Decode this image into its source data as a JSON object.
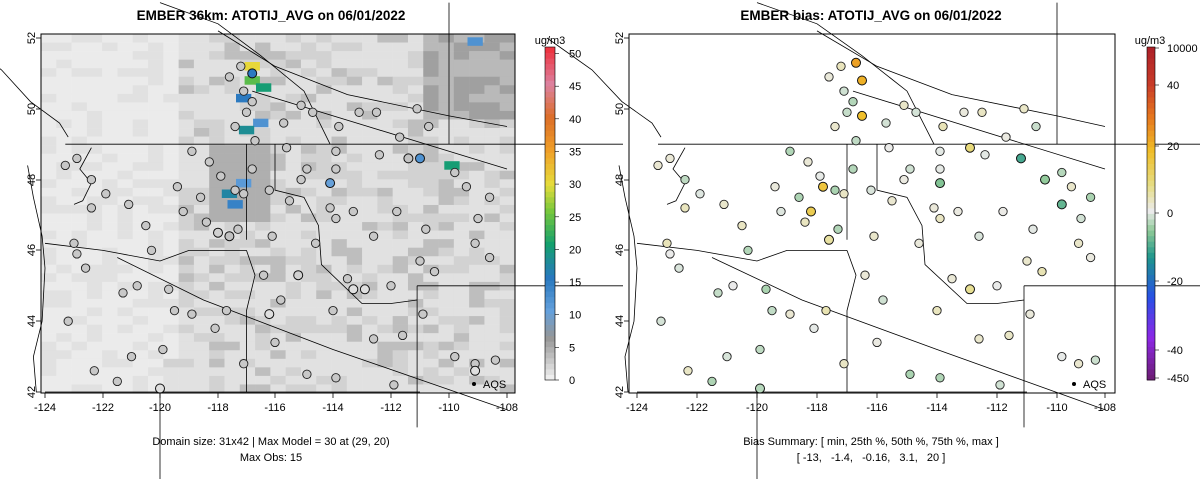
{
  "chart_data": [
    {
      "type": "heatmap",
      "title": "EMBER 36km: ATOTIJ_AVG on 06/01/2022",
      "x_ticks": [
        "-124",
        "-122",
        "-120",
        "-118",
        "-116",
        "-114",
        "-112",
        "-110",
        "-108"
      ],
      "y_ticks": [
        "42",
        "44",
        "46",
        "48",
        "50",
        "52"
      ],
      "xlim": [
        -124.5,
        -107.8
      ],
      "ylim": [
        42,
        52.4
      ],
      "colorbar": {
        "unit": "ug/m3",
        "ticks": [
          "0",
          "5",
          "10",
          "15",
          "20",
          "25",
          "30",
          "35",
          "40",
          "45",
          "50"
        ],
        "range": [
          0,
          51
        ]
      },
      "legend": {
        "label": "AQS"
      },
      "caption_line1": "Domain size: 31x42 | Max Model = 30 at (29, 20)",
      "caption_line2": "Max Obs: 15",
      "highlight_cells": [
        {
          "lon": -116.8,
          "lat": 51.2,
          "value": 30
        },
        {
          "lon": -116.8,
          "lat": 50.8,
          "value": 24
        },
        {
          "lon": -116.4,
          "lat": 50.6,
          "value": 20
        },
        {
          "lon": -117.1,
          "lat": 50.3,
          "value": 15
        },
        {
          "lon": -116.5,
          "lat": 49.6,
          "value": 12
        },
        {
          "lon": -117.0,
          "lat": 49.4,
          "value": 18
        },
        {
          "lon": -117.4,
          "lat": 47.3,
          "value": 14
        },
        {
          "lon": -117.6,
          "lat": 47.6,
          "value": 17
        },
        {
          "lon": -117.1,
          "lat": 47.9,
          "value": 11
        },
        {
          "lon": -109.9,
          "lat": 48.4,
          "value": 20
        },
        {
          "lon": -109.1,
          "lat": 51.9,
          "value": 12
        }
      ],
      "observations": [
        {
          "lon": -116.8,
          "lat": 51.0,
          "value": 15
        },
        {
          "lon": -111.0,
          "lat": 48.6,
          "value": 12
        },
        {
          "lon": -114.1,
          "lat": 47.9,
          "value": 10
        },
        {
          "lon": -111.4,
          "lat": 48.6,
          "value": 3
        },
        {
          "lon": -117.6,
          "lat": 46.4,
          "value": 3
        },
        {
          "lon": -118.0,
          "lat": 46.5,
          "value": 2
        },
        {
          "lon": -115.2,
          "lat": 45.3,
          "value": 2
        },
        {
          "lon": -116.2,
          "lat": 44.2,
          "value": 1
        },
        {
          "lon": -113.3,
          "lat": 44.9,
          "value": 1
        },
        {
          "lon": -112.9,
          "lat": 44.9,
          "value": 1
        },
        {
          "lon": -109.1,
          "lat": 42.6,
          "value": 1
        },
        {
          "lon": -120.0,
          "lat": 42.1,
          "value": 1
        }
      ]
    },
    {
      "type": "scatter",
      "title": "EMBER bias: ATOTIJ_AVG on 06/01/2022",
      "x_ticks": [
        "-124",
        "-122",
        "-120",
        "-118",
        "-116",
        "-114",
        "-112",
        "-110",
        "-108"
      ],
      "y_ticks": [
        "42",
        "44",
        "46",
        "48",
        "50",
        "52"
      ],
      "colorbar": {
        "unit": "ug/m3",
        "ticks": [
          "10000",
          "40",
          "20",
          "0",
          "-20",
          "-40",
          "-450"
        ],
        "range": [
          -450,
          10000
        ]
      },
      "legend": {
        "label": "AQS"
      },
      "caption_line1": "Bias Summary: [ min, 25th %, 50th %, 75th %, max ]",
      "caption_line2": "[ -13,   -1.4,   -0.16,   3.1,   20 ]",
      "bias_summary": {
        "min": -13,
        "p25": -1.4,
        "p50": -0.16,
        "p75": 3.1,
        "max": 20
      },
      "points": [
        {
          "lon": -116.7,
          "lat": 51.3,
          "value": 20
        },
        {
          "lon": -116.5,
          "lat": 50.8,
          "value": 18
        },
        {
          "lon": -116.5,
          "lat": 49.8,
          "value": 16
        },
        {
          "lon": -117.8,
          "lat": 47.8,
          "value": 14
        },
        {
          "lon": -118.2,
          "lat": 47.1,
          "value": 12
        },
        {
          "lon": -112.9,
          "lat": 48.9,
          "value": 8
        },
        {
          "lon": -111.2,
          "lat": 48.6,
          "value": -10
        },
        {
          "lon": -109.8,
          "lat": 47.3,
          "value": -8
        },
        {
          "lon": -110.4,
          "lat": 48.0,
          "value": -5
        },
        {
          "lon": -113.9,
          "lat": 47.9,
          "value": -6
        },
        {
          "lon": -119.9,
          "lat": 42.1,
          "value": -3
        },
        {
          "lon": -112.9,
          "lat": 44.9,
          "value": 6
        },
        {
          "lon": -117.6,
          "lat": 46.3,
          "value": 5
        }
      ]
    }
  ]
}
